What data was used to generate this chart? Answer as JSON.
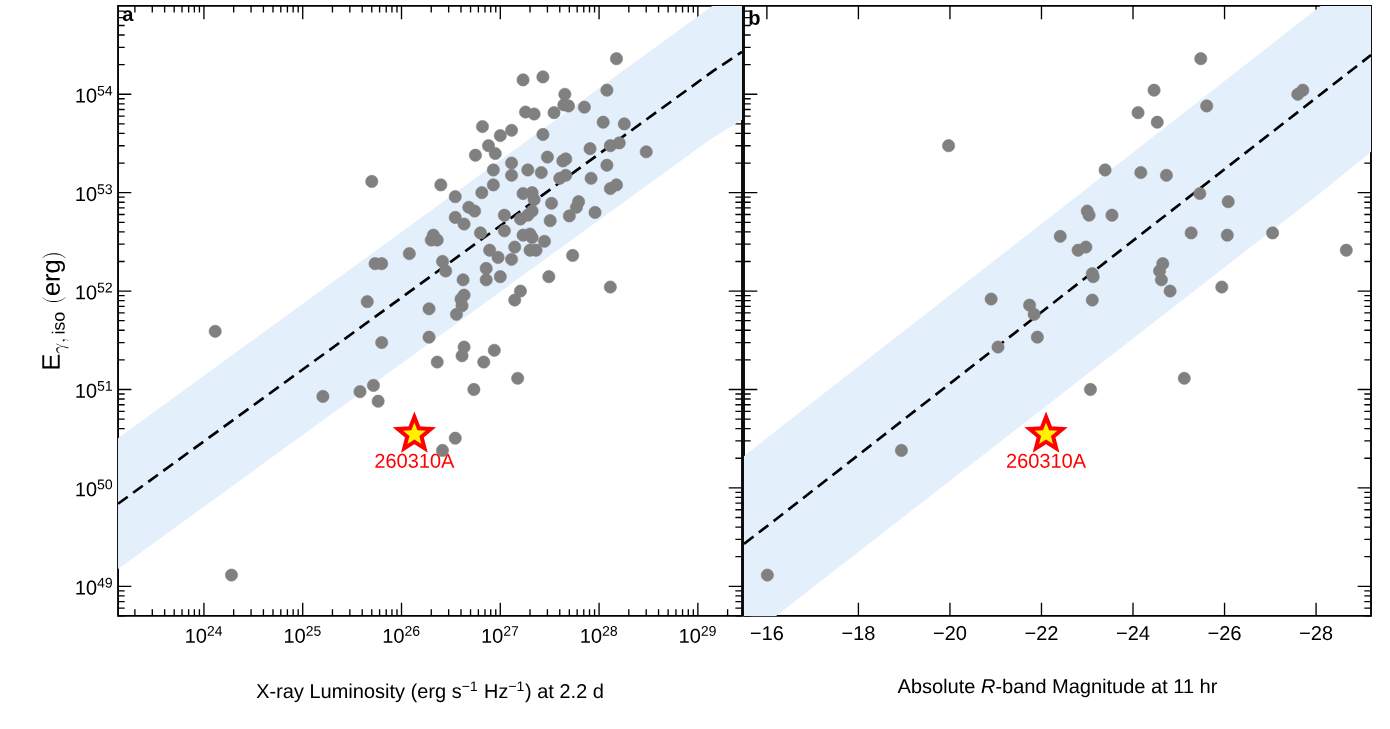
{
  "chart_data": [
    {
      "type": "scatter",
      "title": "a",
      "xlabel": "X-ray Luminosity (erg s$^{−1}$ Hz$^{−1}$) at 2.2 d",
      "ylabel": "\\mathrm{E}_{\\gamma,\\,\\mathrm{iso}}\\ \\mathrm{(erg)}",
      "log": "xy",
      "xlim": [
        1.35e+23,
        2.8e+29
      ],
      "ylim": [
        5e+48,
        7.9e+54
      ],
      "xticks": [
        {
          "value": 1e+24,
          "label": "10$^{24}$"
        },
        {
          "value": 1e+25,
          "label": "10$^{25}$"
        },
        {
          "value": 1e+26,
          "label": "10$^{26}$"
        },
        {
          "value": 1e+27,
          "label": "10$^{27}$"
        },
        {
          "value": 1e+28,
          "label": "10$^{28}$"
        },
        {
          "value": 1e+29,
          "label": "10$^{29}$"
        }
      ],
      "yticks": [
        {
          "value": 1e+49,
          "label": "10$^{49}$"
        },
        {
          "value": 1e+50,
          "label": "10$^{50}$"
        },
        {
          "value": 1e+51,
          "label": "10$^{51}$"
        },
        {
          "value": 1e+52,
          "label": "10$^{52}$"
        },
        {
          "value": 1e+53,
          "label": "10$^{53}$"
        },
        {
          "value": 1e+54,
          "label": "10$^{54}$"
        }
      ],
      "annotations": [
        {
          "text": "260310A",
          "x": 1.35e+26,
          "y": 3.5e+50
        }
      ],
      "series": [
        {
          "type": "line",
          "color": "#000000",
          "line_style": "dashed",
          "marker": "none",
          "x": [
            1.35e+23,
            1.4e+29,
            2.8e+29
          ],
          "values": [
            6.9e+49,
            1.7e+54,
            2.7e+54
          ],
          "lower": [
            1.5e+49,
            3.6e+53,
            5.5e+53
          ],
          "upper": [
            3.2e+50,
            7.9e+54,
            7.9e+54
          ]
        },
        {
          "color": "#808080",
          "marker": "circle",
          "x": [
            5e+25,
            1.3e+24,
            1.9e+24,
            5.4e+25,
            6.3e+25,
            1.2e+26,
            4.5e+25,
            6.3e+25,
            1.6e+25,
            3.8e+25,
            5.2e+25,
            5.8e+25,
            1.5e+28,
            1.7e+27,
            2.7e+27,
            4.5e+27,
            1.2e+28,
            4.4e+27,
            4.9e+27,
            7.1e+27,
            1.8e+27,
            2.2e+27,
            3.5e+27,
            1.1e+28,
            1.8e+28,
            6.6e+26,
            1.3e+27,
            1e+27,
            2.7e+27,
            7.6e+26,
            8.1e+27,
            1.3e+28,
            1.6e+28,
            3e+28,
            5.6e+26,
            8.9e+26,
            3e+27,
            1.3e+27,
            4.3e+27,
            4.6e+27,
            8.5e+26,
            1.9e+27,
            2.6e+27,
            1.3e+27,
            4e+27,
            4.6e+27,
            8.3e+27,
            1.2e+28,
            2.5e+26,
            8.5e+26,
            1.3e+28,
            1.5e+28,
            6.5e+26,
            2.1e+27,
            1.7e+27,
            3.5e+26,
            2.2e+27,
            3.3e+27,
            6.2e+27,
            5.9e+27,
            4.8e+26,
            5.5e+26,
            9.1e+27,
            1.1e+27,
            2.1e+27,
            1.9e+27,
            1.6e+27,
            3.5e+26,
            5e+27,
            4.3e+26,
            3.2e+27,
            1.1e+27,
            6.3e+26,
            2.1e+26,
            2e+26,
            2.3e+26,
            1.7e+27,
            2e+27,
            2.1e+27,
            2.8e+27,
            1.4e+27,
            7.8e+26,
            2e+27,
            2.3e+27,
            9.5e+26,
            1.3e+27,
            5.4e+27,
            2.6e+26,
            2.8e+26,
            7.2e+26,
            4.2e+26,
            1e+27,
            3.1e+27,
            7.2e+26,
            1.6e+27,
            1.4e+27,
            1.3e+28,
            4.3e+26,
            4e+26,
            4.1e+26,
            1.9e+26,
            3.6e+26,
            1.9e+26,
            4.3e+26,
            4.1e+26,
            2.3e+26,
            6.8e+26,
            8.7e+26,
            5.4e+26,
            1.5e+27,
            3.5e+26,
            2.6e+26
          ],
          "values": [
            1.3e+53,
            3.9e+51,
            1.3e+49,
            1.9e+52,
            1.9e+52,
            2.4e+52,
            7.8e+51,
            3e+51,
            8.5e+50,
            9.5e+50,
            1.1e+51,
            7.6e+50,
            2.3e+54,
            1.4e+54,
            1.5e+54,
            1e+54,
            1.1e+54,
            7.8e+53,
            7.6e+53,
            7.4e+53,
            6.6e+53,
            6.3e+53,
            6.5e+53,
            5.2e+53,
            5e+53,
            4.7e+53,
            4.3e+53,
            3.8e+53,
            3.9e+53,
            3e+53,
            2.8e+53,
            3e+53,
            3.2e+53,
            2.6e+53,
            2.4e+53,
            2.5e+53,
            2.3e+53,
            2e+53,
            2.1e+53,
            2.2e+53,
            1.7e+53,
            1.7e+53,
            1.6e+53,
            1.5e+53,
            1.4e+53,
            1.5e+53,
            1.4e+53,
            1.9e+53,
            1.2e+53,
            1.2e+53,
            1.1e+53,
            1.2e+53,
            1e+53,
            1e+53,
            9.8e+52,
            9.1e+52,
            8.5e+52,
            7.8e+52,
            8.1e+52,
            7.1e+52,
            7.1e+52,
            6.5e+52,
            6.3e+52,
            5.9e+52,
            6.5e+52,
            5.9e+52,
            5.4e+52,
            5.6e+52,
            5.8e+52,
            4.8e+52,
            5.2e+52,
            4.1e+52,
            3.9e+52,
            3.7e+52,
            3.3e+52,
            3.3e+52,
            3.7e+52,
            3.8e+52,
            3.5e+52,
            3.2e+52,
            2.8e+52,
            2.6e+52,
            2.6e+52,
            2.6e+52,
            2.2e+52,
            2.1e+52,
            2.3e+52,
            2e+52,
            1.6e+52,
            1.7e+52,
            1.3e+52,
            1.4e+52,
            1.4e+52,
            1.3e+52,
            1e+52,
            8.1e+51,
            1.1e+52,
            9.1e+51,
            8.3e+51,
            7.1e+51,
            6.6e+51,
            5.8e+51,
            3.4e+51,
            2.7e+51,
            2.2e+51,
            1.9e+51,
            1.9e+51,
            2.5e+51,
            1e+51,
            1.3e+51,
            3.2e+50,
            2.4e+50
          ]
        },
        {
          "color": "#ff0000",
          "marker": "star",
          "x": [
            1.35e+26
          ],
          "values": [
            3.5e+50
          ]
        }
      ]
    },
    {
      "type": "scatter",
      "title": "b",
      "xlabel": "Absolute *R*-band Magnitude at 11 hr",
      "log": "y",
      "tick_labels": "x",
      "xlim": [
        -15.5,
        -29.2
      ],
      "ylim": [
        5e+48,
        7.9e+54
      ],
      "xticks": [
        {
          "value": -16,
          "label": "−16"
        },
        {
          "value": -18,
          "label": "−18"
        },
        {
          "value": -20,
          "label": "−20"
        },
        {
          "value": -22,
          "label": "−22"
        },
        {
          "value": -24,
          "label": "−24"
        },
        {
          "value": -26,
          "label": "−26"
        },
        {
          "value": -28,
          "label": "−28"
        }
      ],
      "yticks": [
        {
          "value": 1e+49,
          "label": null
        },
        {
          "value": 1e+50,
          "label": null
        },
        {
          "value": 1e+51,
          "label": null
        },
        {
          "value": 1e+52,
          "label": null
        },
        {
          "value": 1e+53,
          "label": null
        },
        {
          "value": 1e+54,
          "label": null
        }
      ],
      "annotations": [
        {
          "text": "260310A",
          "x": -22.1,
          "y": 3.5e+50
        }
      ],
      "series": [
        {
          "type": "line",
          "color": "#000000",
          "line_style": "dashed",
          "marker": "none",
          "x": [
            -15.5,
            -16.2,
            -28.1,
            -29.2
          ],
          "values": [
            2.7e+49,
            4.8e+49,
            1e+54,
            2.5e+54
          ],
          "lower": [
            5e+48,
            5e+48,
            1e+53,
            2.6e+53
          ],
          "upper": [
            2.1e+50,
            3.8e+50,
            7.9e+54,
            7.9e+54
          ]
        },
        {
          "color": "#808080",
          "marker": "circle",
          "x": [
            -19.97,
            -20.9,
            -21.74,
            -21.84,
            -21.91,
            -21.05,
            -18.94,
            -16.01,
            -22.41,
            -25.48,
            -24.46,
            -24.11,
            -24.53,
            -25.61,
            -27.6,
            -27.71,
            -23.39,
            -24.17,
            -24.73,
            -25.46,
            -26.08,
            -23.0,
            -23.04,
            -23.54,
            -25.27,
            -26.06,
            -27.05,
            -28.66,
            -22.8,
            -22.97,
            -23.11,
            -23.13,
            -24.65,
            -24.58,
            -24.62,
            -24.81,
            -25.94,
            -23.11,
            -25.12,
            -23.07
          ],
          "values": [
            3e+53,
            8.3e+51,
            7.2e+51,
            5.8e+51,
            3.4e+51,
            2.7e+51,
            2.4e+50,
            1.3e+49,
            3.6e+52,
            2.3e+54,
            1.1e+54,
            6.5e+53,
            5.2e+53,
            7.6e+53,
            1e+54,
            1.1e+54,
            1.7e+53,
            1.6e+53,
            1.5e+53,
            9.8e+52,
            8.1e+52,
            6.5e+52,
            5.9e+52,
            5.9e+52,
            3.9e+52,
            3.7e+52,
            3.9e+52,
            2.6e+52,
            2.6e+52,
            2.8e+52,
            1.5e+52,
            1.4e+52,
            1.9e+52,
            1.6e+52,
            1.3e+52,
            1e+52,
            1.1e+52,
            8.1e+51,
            1.3e+51,
            1e+51
          ]
        },
        {
          "color": "#ff0000",
          "marker": "star",
          "x": [
            -22.1
          ],
          "values": [
            3.5e+50
          ]
        }
      ]
    }
  ]
}
